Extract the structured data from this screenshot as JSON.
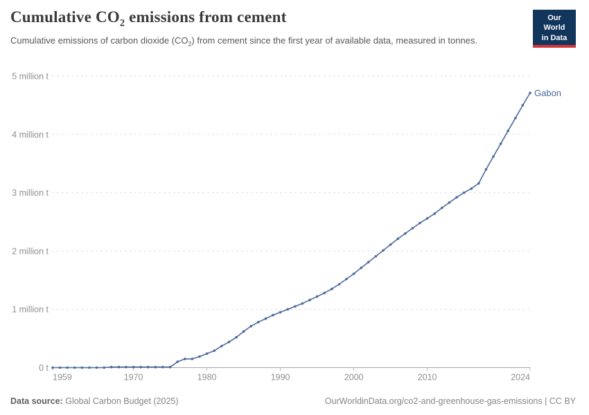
{
  "header": {
    "title_pre": "Cumulative CO",
    "title_sub": "2",
    "title_post": " emissions from cement",
    "subtitle_pre": "Cumulative emissions of carbon dioxide (CO",
    "subtitle_sub": "2",
    "subtitle_post": ") from cement since the first year of available data, measured in tonnes."
  },
  "logo": {
    "line1": "Our World",
    "line2": "in Data",
    "bg_color": "#12355b",
    "bar_color": "#d1353b"
  },
  "footer": {
    "source_label": "Data source:",
    "source_value": "Global Carbon Budget (2025)",
    "link": "OurWorldinData.org/co2-and-greenhouse-gas-emissions | CC BY"
  },
  "chart_data": {
    "type": "line",
    "title": "Cumulative CO₂ emissions from cement",
    "xlabel": "",
    "ylabel": "",
    "unit": "t",
    "value_scale": "million tonnes",
    "grid": true,
    "legend_position": "end-of-line-label",
    "color": "#4c6a9c",
    "axis_color": "#a5a5a5",
    "grid_color": "#dedede",
    "xlim": [
      1959,
      2024
    ],
    "ylim": [
      0,
      5
    ],
    "xticks": [
      {
        "year": 1959,
        "label": "1959"
      },
      {
        "year": 1970,
        "label": "1970"
      },
      {
        "year": 1980,
        "label": "1980"
      },
      {
        "year": 1990,
        "label": "1990"
      },
      {
        "year": 2000,
        "label": "2000"
      },
      {
        "year": 2010,
        "label": "2010"
      },
      {
        "year": 2024,
        "label": "2024"
      }
    ],
    "yticks": [
      {
        "value": 0,
        "label": "0 t"
      },
      {
        "value": 1,
        "label": "1 million t"
      },
      {
        "value": 2,
        "label": "2 million t"
      },
      {
        "value": 3,
        "label": "3 million t"
      },
      {
        "value": 4,
        "label": "4 million t"
      },
      {
        "value": 5,
        "label": "5 million t"
      }
    ],
    "x": [
      1959,
      1960,
      1961,
      1962,
      1963,
      1964,
      1965,
      1966,
      1967,
      1968,
      1969,
      1970,
      1971,
      1972,
      1973,
      1974,
      1975,
      1976,
      1977,
      1978,
      1979,
      1980,
      1981,
      1982,
      1983,
      1984,
      1985,
      1986,
      1987,
      1988,
      1989,
      1990,
      1991,
      1992,
      1993,
      1994,
      1995,
      1996,
      1997,
      1998,
      1999,
      2000,
      2001,
      2002,
      2003,
      2004,
      2005,
      2006,
      2007,
      2008,
      2009,
      2010,
      2011,
      2012,
      2013,
      2014,
      2015,
      2016,
      2017,
      2018,
      2019,
      2020,
      2021,
      2022,
      2023,
      2024
    ],
    "series": [
      {
        "name": "Gabon",
        "values": [
          0.0,
          0.0,
          0.0,
          0.0,
          0.0,
          0.0,
          0.0,
          0.0,
          0.01,
          0.01,
          0.01,
          0.01,
          0.01,
          0.01,
          0.01,
          0.01,
          0.01,
          0.1,
          0.15,
          0.15,
          0.19,
          0.24,
          0.29,
          0.37,
          0.44,
          0.52,
          0.62,
          0.71,
          0.78,
          0.84,
          0.9,
          0.95,
          1.0,
          1.05,
          1.1,
          1.16,
          1.22,
          1.28,
          1.35,
          1.43,
          1.52,
          1.61,
          1.71,
          1.81,
          1.91,
          2.01,
          2.11,
          2.21,
          2.3,
          2.39,
          2.48,
          2.56,
          2.64,
          2.74,
          2.83,
          2.92,
          3.0,
          3.07,
          3.16,
          3.4,
          3.62,
          3.84,
          4.06,
          4.28,
          4.5,
          4.71
        ]
      }
    ]
  }
}
